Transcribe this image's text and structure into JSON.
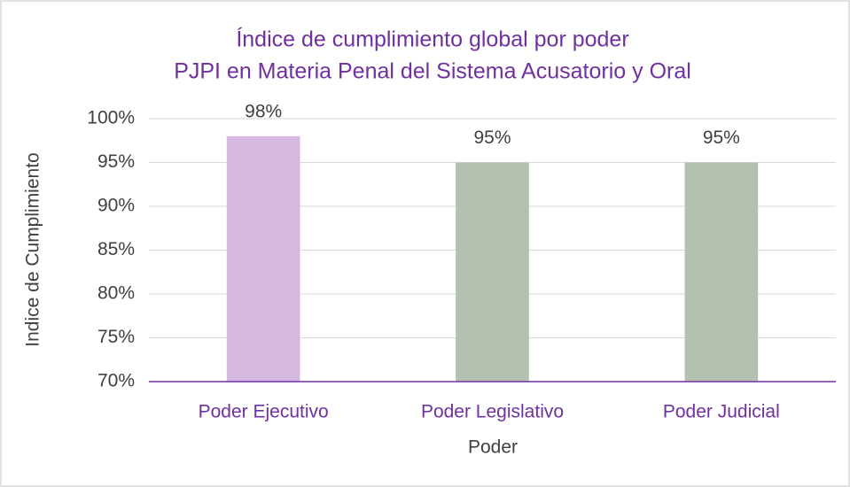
{
  "chart_data": {
    "type": "bar",
    "title": "Índice de cumplimiento global por poder",
    "subtitle": "PJPI en Materia Penal del Sistema Acusatorio y Oral",
    "x_label": "Poder",
    "y_label": "Indice de Cumplimiento",
    "categories": [
      "Poder Ejecutivo",
      "Poder Legislativo",
      "Poder Judicial"
    ],
    "values": [
      98,
      95,
      95
    ],
    "value_labels": [
      "98%",
      "95%",
      "95%"
    ],
    "colors": [
      "#d5b8df",
      "#b4c1b0",
      "#b4c1b0"
    ],
    "ylim": [
      70,
      100
    ],
    "yticks": [
      {
        "value": 70,
        "label": "70%"
      },
      {
        "value": 75,
        "label": "75%"
      },
      {
        "value": 80,
        "label": "80%"
      },
      {
        "value": 85,
        "label": "85%"
      },
      {
        "value": 90,
        "label": "90%"
      },
      {
        "value": 95,
        "label": "95%"
      },
      {
        "value": 100,
        "label": "100%"
      }
    ],
    "grid": true
  }
}
